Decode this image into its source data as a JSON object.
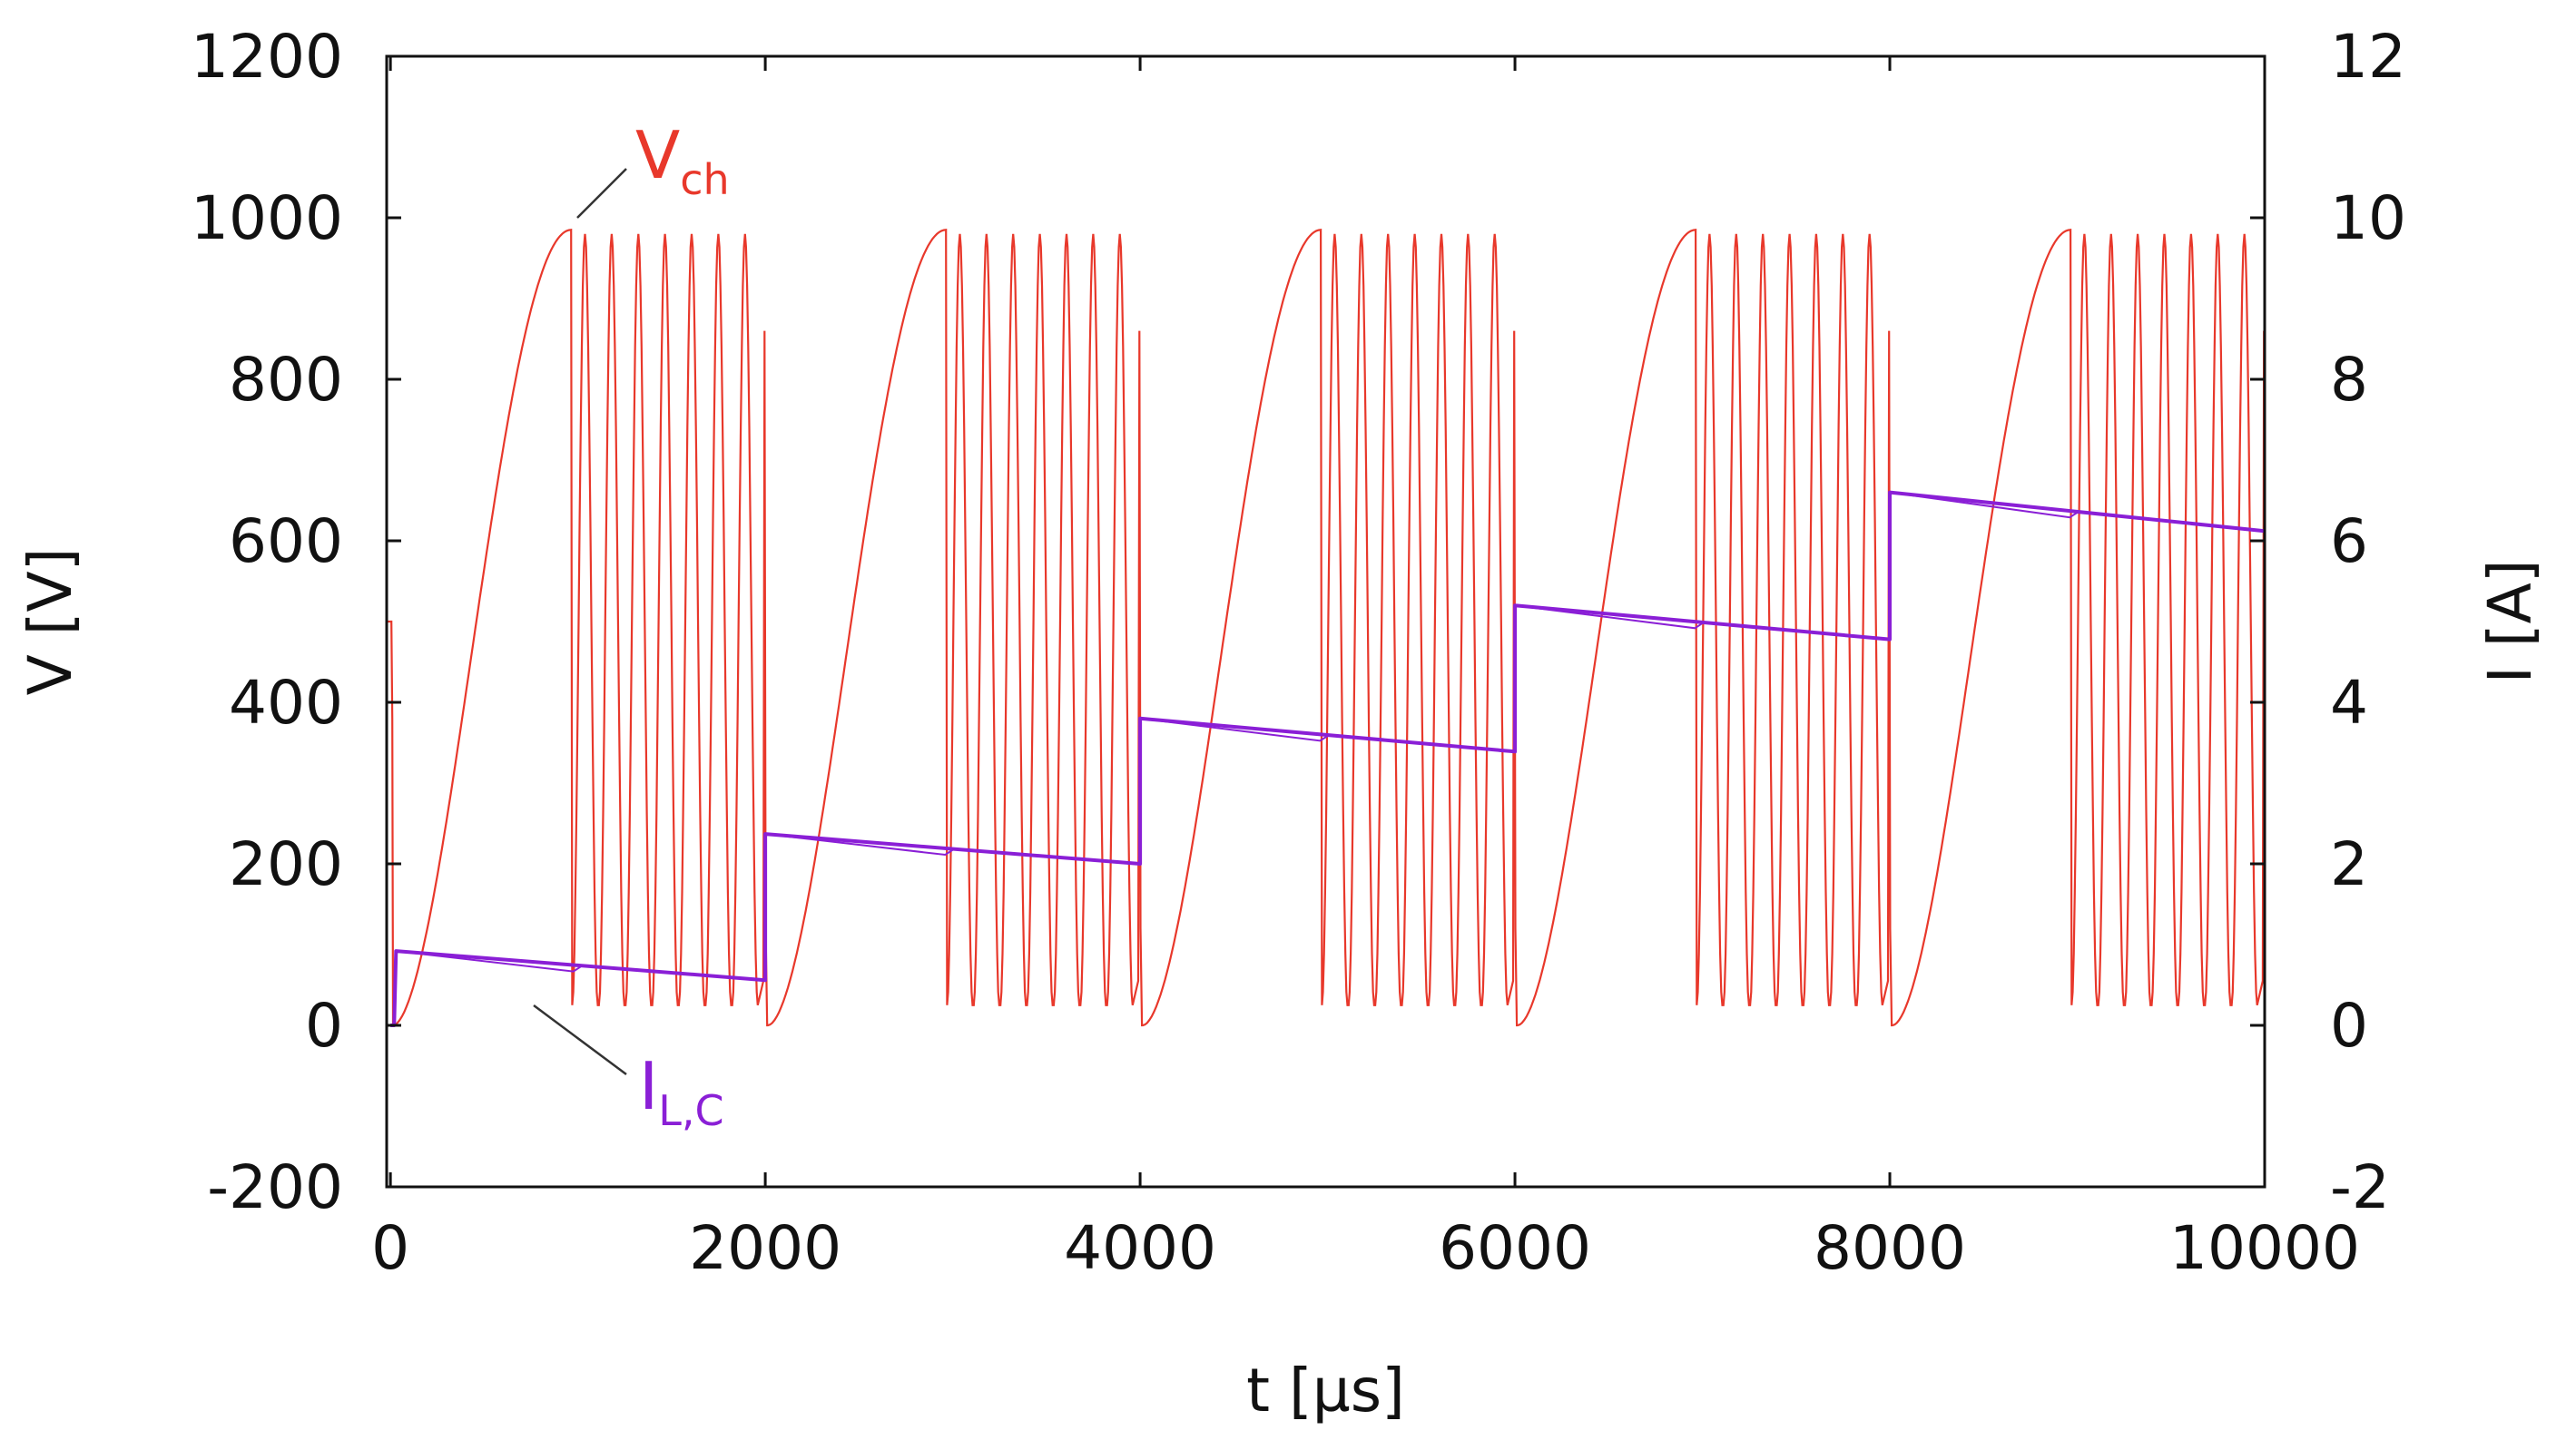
{
  "chart_data": {
    "type": "line",
    "title": "",
    "xlabel": "t [µs]",
    "ylabel_left": "V [V]",
    "ylabel_right": "I [A]",
    "xlim": [
      -20,
      10000
    ],
    "ylim_left": [
      -200,
      1200
    ],
    "ylim_right": [
      -2,
      12
    ],
    "x_ticks": [
      "0",
      "2000",
      "4000",
      "6000",
      "8000",
      "10000"
    ],
    "y_left_ticks": [
      "-200",
      "0",
      "200",
      "400",
      "600",
      "800",
      "1000",
      "1200"
    ],
    "y_right_ticks": [
      "-2",
      "0",
      "2",
      "4",
      "6",
      "8",
      "10",
      "12"
    ],
    "grid": false,
    "colors": {
      "vch": "#e8382b",
      "ilc": "#8a1fd6",
      "axis": "#111111",
      "leader": "#333333"
    },
    "annotations": [
      {
        "series": "Vch",
        "main": "V",
        "sub": "ch",
        "color": "#e8382b"
      },
      {
        "series": "IL,C",
        "main": "I",
        "sub": "L,C",
        "color": "#8a1fd6"
      }
    ],
    "series": [
      {
        "name": "Vch",
        "axis": "left",
        "color": "#e8382b",
        "description_values": {
          "period_us": 2000,
          "initial_value_V": 500,
          "charge_ramp_from_V": 0,
          "charge_ramp_to_V": 985,
          "charge_ramp_duration_us": 950,
          "oscillation_max_V": 980,
          "oscillation_min_V": 25,
          "oscillation_cycles_per_period": 7,
          "spike_at_period_end_V": 860
        }
      },
      {
        "name": "IL,C",
        "axis": "right",
        "color": "#8a1fd6",
        "segments": [
          {
            "t_start": 30,
            "t_end": 2000,
            "i_start": 0.92,
            "i_end": 0.56
          },
          {
            "t_start": 2000,
            "t_end": 4000,
            "i_start": 2.37,
            "i_end": 2.0
          },
          {
            "t_start": 4000,
            "t_end": 6000,
            "i_start": 3.8,
            "i_end": 3.39
          },
          {
            "t_start": 6000,
            "t_end": 8000,
            "i_start": 5.2,
            "i_end": 4.78
          },
          {
            "t_start": 8000,
            "t_end": 10000,
            "i_start": 6.6,
            "i_end": 6.12
          }
        ]
      }
    ]
  }
}
